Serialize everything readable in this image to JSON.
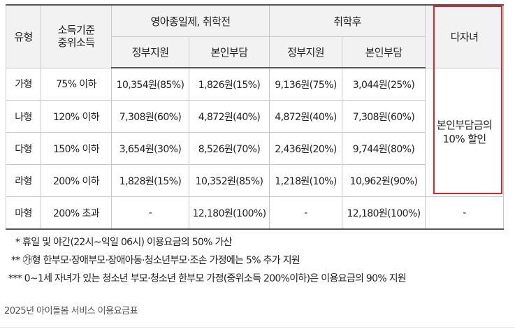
{
  "table": {
    "header_top": {
      "type": "유형",
      "income_line1": "소득기준",
      "income_line2": "중위소득",
      "group_before": "영아종일제, 취학전",
      "group_after": "취학후",
      "multi_child": "다자녀"
    },
    "header_sub": {
      "gov_before": "정부지원",
      "self_before": "본인부담",
      "gov_after": "정부지원",
      "self_after": "본인부담"
    },
    "rows": [
      {
        "type": "가형",
        "income": "75% 이하",
        "gov_before": "10,354원(85%)",
        "self_before": "1,826원(15%)",
        "gov_after": "9,136원(75%)",
        "self_after": "3,044원(25%)"
      },
      {
        "type": "나형",
        "income": "120% 이하",
        "gov_before": "7,308원(60%)",
        "self_before": "4,872원(40%)",
        "gov_after": "4,872원(40%)",
        "self_after": "7,308원(60%)"
      },
      {
        "type": "다형",
        "income": "150% 이하",
        "gov_before": "3,654원(30%)",
        "self_before": "8,526원(70%)",
        "gov_after": "2,436원(20%)",
        "self_after": "9,744원(80%)"
      },
      {
        "type": "라형",
        "income": "200% 이하",
        "gov_before": "1,828원(15%)",
        "self_before": "10,352원(85%)",
        "gov_after": "1,218원(10%)",
        "self_after": "10,962원(90%)"
      },
      {
        "type": "마형",
        "income": "200% 초과",
        "gov_before": "-",
        "self_before": "12,180원(100%)",
        "gov_after": "-",
        "self_after": "12,180원(100%)",
        "multi": "-"
      }
    ],
    "multi_discount_line1": "본인부담금의",
    "multi_discount_line2": "10% 할인"
  },
  "notes": [
    "* 휴일 및 야간(22시~익일 06시) 이용요금의 50% 가산",
    "** ㉮형 한부모·장애부모·장애아동·청소년부모·조손 가정에는 5% 추가 지원",
    "*** 0~1세 자녀가 있는 청소년 부모·청소년 한부모 가정(중위소득 200%이하)은 이용요금의 90% 지원"
  ],
  "caption": "2025년 아이돌봄 서비스 이용요금표",
  "colors": {
    "highlight_border": "#e0242c",
    "header_bg": "#f2f2f2"
  }
}
